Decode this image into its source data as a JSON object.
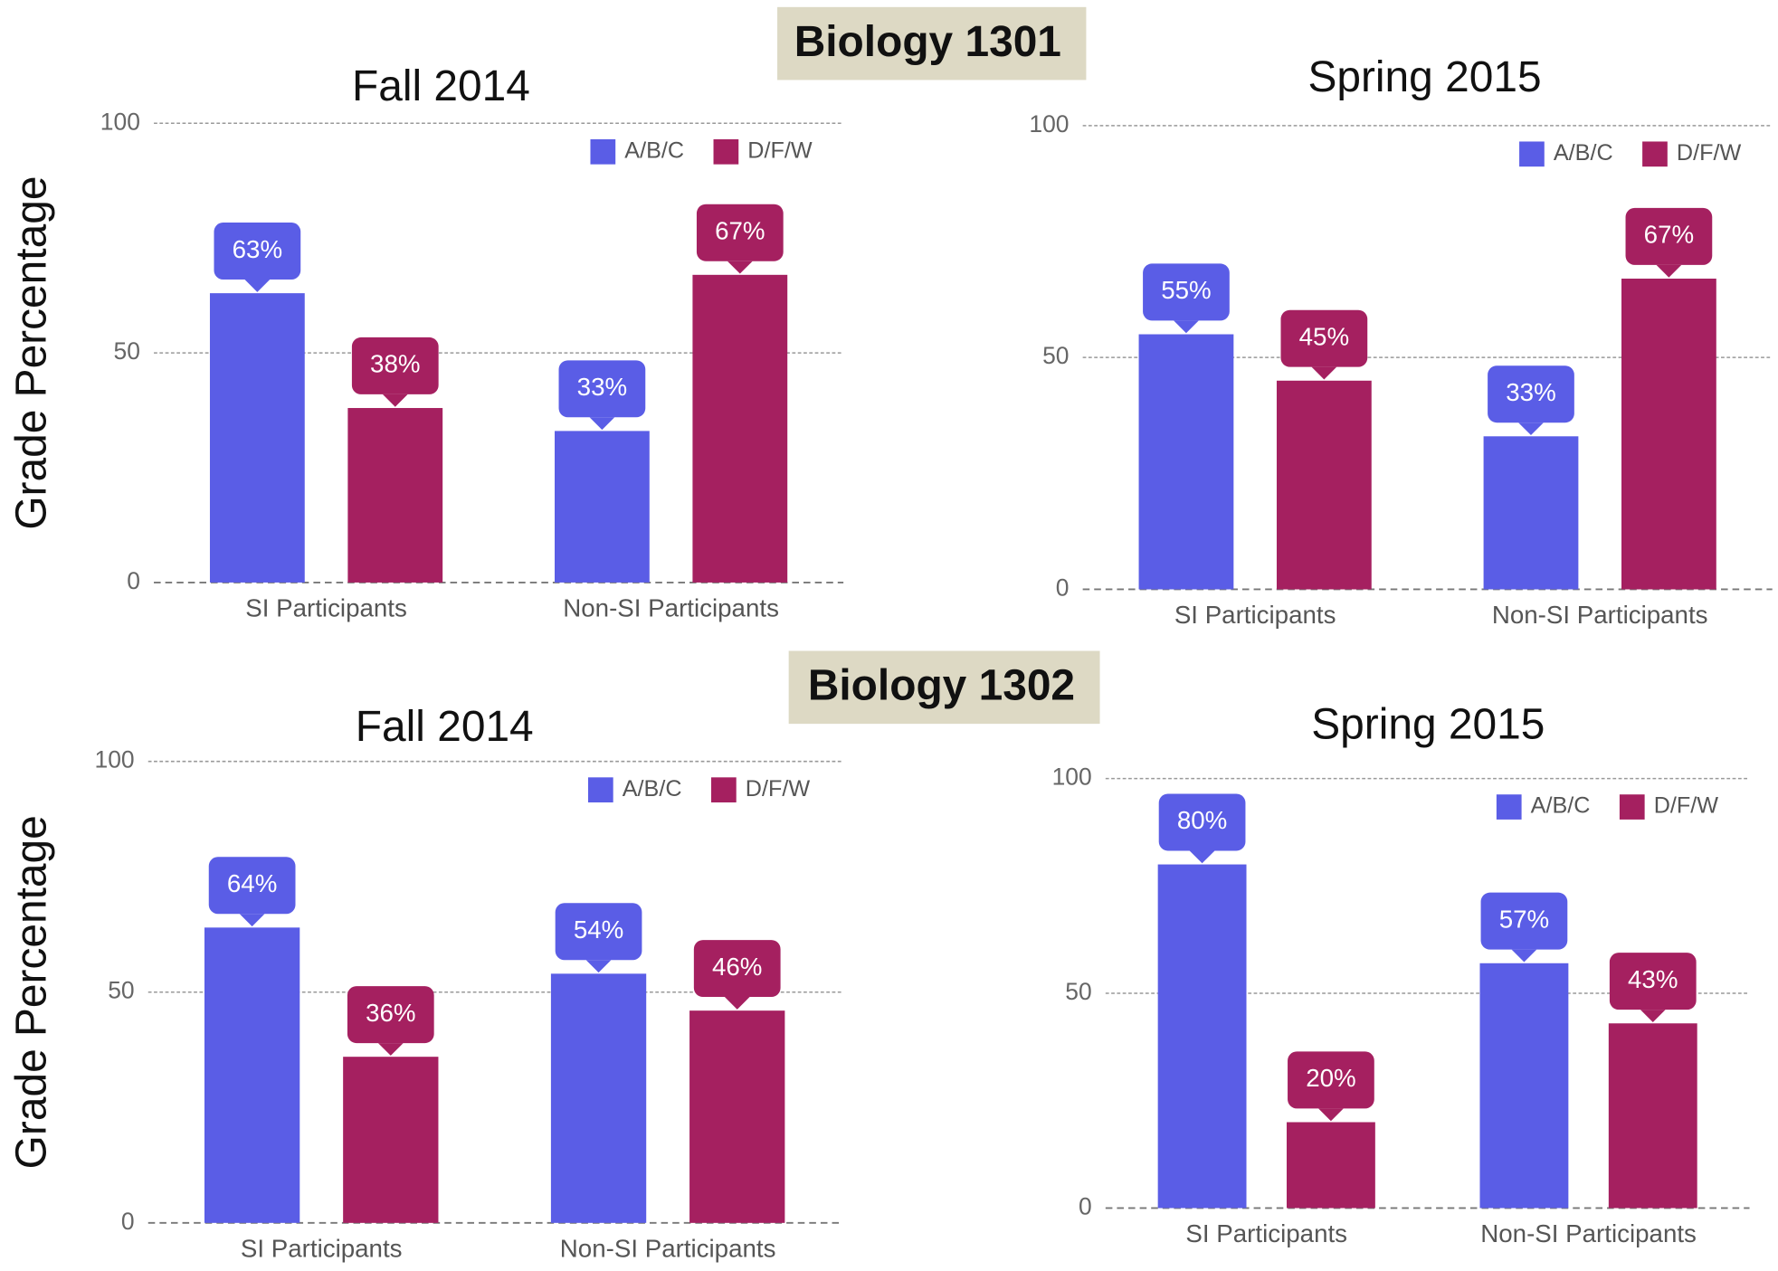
{
  "headers": [
    "Biology 1301",
    "Biology 1302"
  ],
  "chart_data": [
    {
      "type": "bar",
      "title": "Fall 2014",
      "ylabel": "Grade Percentage",
      "categories": [
        "SI Participants",
        "Non-SI Participants"
      ],
      "series": [
        {
          "name": "A/B/C",
          "color": "#5a5de6",
          "values": [
            63,
            33
          ],
          "value_labels": [
            "63%",
            "33%"
          ]
        },
        {
          "name": "D/F/W",
          "color": "#a52060",
          "values": [
            38,
            67
          ],
          "value_labels": [
            "38%",
            "67%"
          ]
        }
      ],
      "ylim": [
        0,
        100
      ],
      "yticks": [
        0,
        50,
        100
      ],
      "grid": true,
      "legend": "top-right"
    },
    {
      "type": "bar",
      "title": "Spring 2015",
      "categories": [
        "SI Participants",
        "Non-SI Participants"
      ],
      "series": [
        {
          "name": "A/B/C",
          "color": "#5a5de6",
          "values": [
            55,
            33
          ],
          "value_labels": [
            "55%",
            "33%"
          ]
        },
        {
          "name": "D/F/W",
          "color": "#a52060",
          "values": [
            45,
            67
          ],
          "value_labels": [
            "45%",
            "67%"
          ]
        }
      ],
      "ylim": [
        0,
        100
      ],
      "yticks": [
        0,
        50,
        100
      ],
      "grid": true,
      "legend": "top-right"
    },
    {
      "type": "bar",
      "title": "Fall 2014",
      "ylabel": "Grade Percentage",
      "categories": [
        "SI Participants",
        "Non-SI Participants"
      ],
      "series": [
        {
          "name": "A/B/C",
          "color": "#5a5de6",
          "values": [
            64,
            54
          ],
          "value_labels": [
            "64%",
            "54%"
          ]
        },
        {
          "name": "D/F/W",
          "color": "#a52060",
          "values": [
            36,
            46
          ],
          "value_labels": [
            "36%",
            "46%"
          ]
        }
      ],
      "ylim": [
        0,
        100
      ],
      "yticks": [
        0,
        50,
        100
      ],
      "grid": true,
      "legend": "top-right"
    },
    {
      "type": "bar",
      "title": "Spring 2015",
      "categories": [
        "SI Participants",
        "Non-SI Participants"
      ],
      "series": [
        {
          "name": "A/B/C",
          "color": "#5a5de6",
          "values": [
            80,
            57
          ],
          "value_labels": [
            "80%",
            "57%"
          ]
        },
        {
          "name": "D/F/W",
          "color": "#a52060",
          "values": [
            20,
            43
          ],
          "value_labels": [
            "20%",
            "43%"
          ]
        }
      ],
      "ylim": [
        0,
        100
      ],
      "yticks": [
        0,
        50,
        100
      ],
      "grid": true,
      "legend": "top-right"
    }
  ]
}
